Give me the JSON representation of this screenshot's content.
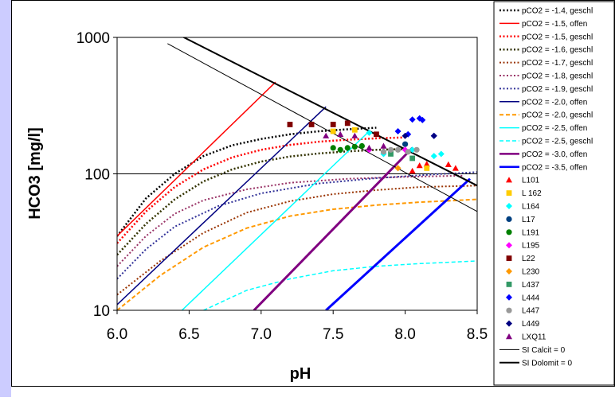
{
  "chart_data": {
    "type": "scatter",
    "xlabel": "pH",
    "ylabel": "HCO3 [mg/l]",
    "xlim": [
      6.0,
      8.5
    ],
    "ylim": [
      10,
      1000
    ],
    "yscale": "log",
    "x_ticks": [
      "6.0",
      "6.5",
      "7.0",
      "7.5",
      "8.0",
      "8.5"
    ],
    "x_tick_values": [
      6.0,
      6.5,
      7.0,
      7.5,
      8.0,
      8.5
    ],
    "y_ticks": [
      "10",
      "100",
      "1000"
    ],
    "y_tick_values": [
      10,
      100,
      1000
    ],
    "grid": "horizontal line at 100",
    "legend_position": "right",
    "lines": [
      {
        "name": "pCO2 = -1.4, geschl",
        "color": "#000000",
        "dash": "dotted",
        "width": 2.5,
        "points": [
          [
            6.0,
            35
          ],
          [
            6.2,
            66
          ],
          [
            6.4,
            100
          ],
          [
            6.6,
            135
          ],
          [
            6.8,
            162
          ],
          [
            7.0,
            180
          ],
          [
            7.2,
            195
          ],
          [
            7.4,
            205
          ],
          [
            7.6,
            212
          ],
          [
            7.8,
            218
          ]
        ]
      },
      {
        "name": "pCO2 = -1.5, offen",
        "color": "#ff0000",
        "dash": "solid",
        "width": 1.5,
        "points": [
          [
            6.0,
            35
          ],
          [
            7.1,
            470
          ]
        ]
      },
      {
        "name": "pCO2 = -1.5, geschl",
        "color": "#ff0000",
        "dash": "dotted",
        "width": 2.5,
        "points": [
          [
            6.0,
            31
          ],
          [
            6.2,
            53
          ],
          [
            6.4,
            80
          ],
          [
            6.6,
            108
          ],
          [
            6.8,
            132
          ],
          [
            7.0,
            150
          ],
          [
            7.2,
            163
          ],
          [
            7.4,
            172
          ],
          [
            7.6,
            178
          ],
          [
            7.8,
            182
          ],
          [
            8.0,
            185
          ]
        ]
      },
      {
        "name": "pCO2 = -1.6, geschl",
        "color": "#333300",
        "dash": "dotted",
        "width": 2.5,
        "points": [
          [
            6.0,
            25.5
          ],
          [
            6.2,
            43
          ],
          [
            6.4,
            65
          ],
          [
            6.6,
            88
          ],
          [
            6.8,
            108
          ],
          [
            7.0,
            123
          ],
          [
            7.2,
            134
          ],
          [
            7.4,
            141
          ],
          [
            7.6,
            146
          ],
          [
            7.8,
            150
          ],
          [
            8.0,
            152
          ]
        ]
      },
      {
        "name": "pCO2 = -1.7, geschl",
        "color": "#993300",
        "dash": "dotted",
        "width": 2.0,
        "points": [
          [
            6.0,
            13
          ],
          [
            6.3,
            23
          ],
          [
            6.6,
            37
          ],
          [
            6.9,
            52
          ],
          [
            7.2,
            63
          ],
          [
            7.5,
            71
          ],
          [
            7.8,
            76
          ],
          [
            8.1,
            80
          ],
          [
            8.5,
            82
          ]
        ]
      },
      {
        "name": "pCO2 = -1.8, geschl",
        "color": "#993366",
        "dash": "dotted",
        "width": 2.0,
        "points": [
          [
            6.0,
            21
          ],
          [
            6.2,
            35
          ],
          [
            6.4,
            51
          ],
          [
            6.6,
            64
          ],
          [
            6.9,
            77
          ],
          [
            7.2,
            86
          ],
          [
            7.6,
            92
          ],
          [
            8.0,
            95
          ],
          [
            8.4,
            97
          ]
        ]
      },
      {
        "name": "pCO2 = -1.9, geschl",
        "color": "#333399",
        "dash": "dotted",
        "width": 2.0,
        "points": [
          [
            6.0,
            17
          ],
          [
            6.2,
            28
          ],
          [
            6.4,
            41
          ],
          [
            6.7,
            58
          ],
          [
            7.0,
            72
          ],
          [
            7.4,
            85
          ],
          [
            7.8,
            93
          ],
          [
            8.2,
            99
          ],
          [
            8.5,
            103
          ]
        ]
      },
      {
        "name": "pCO2 = -2.0, offen",
        "color": "#000080",
        "dash": "solid",
        "width": 1.5,
        "points": [
          [
            6.0,
            11
          ],
          [
            7.45,
            310
          ]
        ]
      },
      {
        "name": "pCO2 = -2.0, geschl",
        "color": "#ff9900",
        "dash": "dashed",
        "width": 2.0,
        "points": [
          [
            6.0,
            10
          ],
          [
            6.3,
            18
          ],
          [
            6.6,
            29
          ],
          [
            6.9,
            40
          ],
          [
            7.2,
            49
          ],
          [
            7.5,
            55
          ],
          [
            7.8,
            59
          ],
          [
            8.1,
            62
          ],
          [
            8.5,
            65
          ]
        ]
      },
      {
        "name": "pCO2 = -2.5, offen",
        "color": "#00ffff",
        "dash": "solid",
        "width": 1.5,
        "points": [
          [
            6.45,
            10
          ],
          [
            7.75,
            205
          ]
        ]
      },
      {
        "name": "pCO2 = -2.5, geschl",
        "color": "#00ffff",
        "dash": "dashed",
        "width": 1.5,
        "points": [
          [
            6.6,
            10
          ],
          [
            6.9,
            14
          ],
          [
            7.2,
            17
          ],
          [
            7.5,
            19.5
          ],
          [
            7.8,
            21
          ],
          [
            8.1,
            22
          ],
          [
            8.5,
            23
          ]
        ]
      },
      {
        "name": "pCO2 = -3.0, offen",
        "color": "#800080",
        "dash": "solid",
        "width": 3.0,
        "points": [
          [
            6.95,
            10
          ],
          [
            8.05,
            155
          ]
        ]
      },
      {
        "name": "pCO2 = -3.5, offen",
        "color": "#0000ff",
        "dash": "solid",
        "width": 3.0,
        "points": [
          [
            7.45,
            10
          ],
          [
            8.45,
            92
          ]
        ]
      },
      {
        "name": "SI Calcit = 0",
        "color": "#000000",
        "dash": "solid",
        "width": 1.0,
        "points": [
          [
            6.35,
            900
          ],
          [
            8.5,
            53
          ]
        ]
      },
      {
        "name": "SI Dolomit = 0",
        "color": "#000000",
        "dash": "solid",
        "width": 2.0,
        "points": [
          [
            6.35,
            1150
          ],
          [
            8.5,
            82
          ]
        ]
      }
    ],
    "scatter_series": [
      {
        "name": "L101",
        "marker": "triangle",
        "color": "#ff0000",
        "points": [
          [
            8.05,
            105
          ],
          [
            8.1,
            115
          ],
          [
            8.15,
            118
          ],
          [
            8.3,
            117
          ],
          [
            8.35,
            110
          ]
        ]
      },
      {
        "name": "L 162",
        "marker": "square",
        "color": "#ffcc00",
        "points": [
          [
            7.5,
            205
          ],
          [
            7.65,
            210
          ],
          [
            8.15,
            110
          ]
        ]
      },
      {
        "name": "L164",
        "marker": "diamond",
        "color": "#00ffff",
        "points": [
          [
            7.75,
            200
          ],
          [
            7.85,
            140
          ],
          [
            8.05,
            150
          ],
          [
            8.2,
            135
          ],
          [
            8.25,
            140
          ]
        ]
      },
      {
        "name": "L17",
        "marker": "circle",
        "color": "#004080",
        "points": [
          [
            8.0,
            165
          ]
        ]
      },
      {
        "name": "L191",
        "marker": "circle",
        "color": "#008000",
        "points": [
          [
            7.5,
            155
          ],
          [
            7.6,
            155
          ],
          [
            7.65,
            158
          ],
          [
            7.7,
            160
          ],
          [
            7.55,
            150
          ]
        ]
      },
      {
        "name": "L195",
        "marker": "diamond",
        "color": "#ff00ff",
        "points": [
          [
            7.75,
            150
          ],
          [
            8.0,
            150
          ]
        ]
      },
      {
        "name": "L22",
        "marker": "square",
        "color": "#800000",
        "points": [
          [
            7.2,
            230
          ],
          [
            7.35,
            230
          ],
          [
            7.5,
            230
          ],
          [
            7.6,
            235
          ],
          [
            7.8,
            195
          ]
        ]
      },
      {
        "name": "L230",
        "marker": "diamond",
        "color": "#ff9900",
        "points": [
          [
            7.95,
            110
          ]
        ]
      },
      {
        "name": "L437",
        "marker": "square",
        "color": "#339966",
        "points": [
          [
            7.9,
            140
          ],
          [
            8.05,
            130
          ]
        ]
      },
      {
        "name": "L444",
        "marker": "diamond",
        "color": "#0000ff",
        "points": [
          [
            8.05,
            250
          ],
          [
            8.1,
            255
          ],
          [
            8.12,
            248
          ],
          [
            7.95,
            205
          ],
          [
            8.02,
            195
          ],
          [
            8.2,
            190
          ]
        ]
      },
      {
        "name": "L447",
        "marker": "circle",
        "color": "#999999",
        "points": [
          [
            7.85,
            145
          ],
          [
            7.9,
            150
          ],
          [
            7.95,
            150
          ],
          [
            8.02,
            145
          ],
          [
            8.08,
            150
          ]
        ]
      },
      {
        "name": "L449",
        "marker": "diamond",
        "color": "#000080",
        "points": [
          [
            8.2,
            190
          ],
          [
            8.0,
            190
          ]
        ]
      },
      {
        "name": "LXQ11",
        "marker": "triangle",
        "color": "#800080",
        "points": [
          [
            7.45,
            190
          ],
          [
            7.55,
            195
          ],
          [
            7.65,
            190
          ],
          [
            7.75,
            155
          ],
          [
            7.85,
            160
          ]
        ]
      }
    ]
  }
}
